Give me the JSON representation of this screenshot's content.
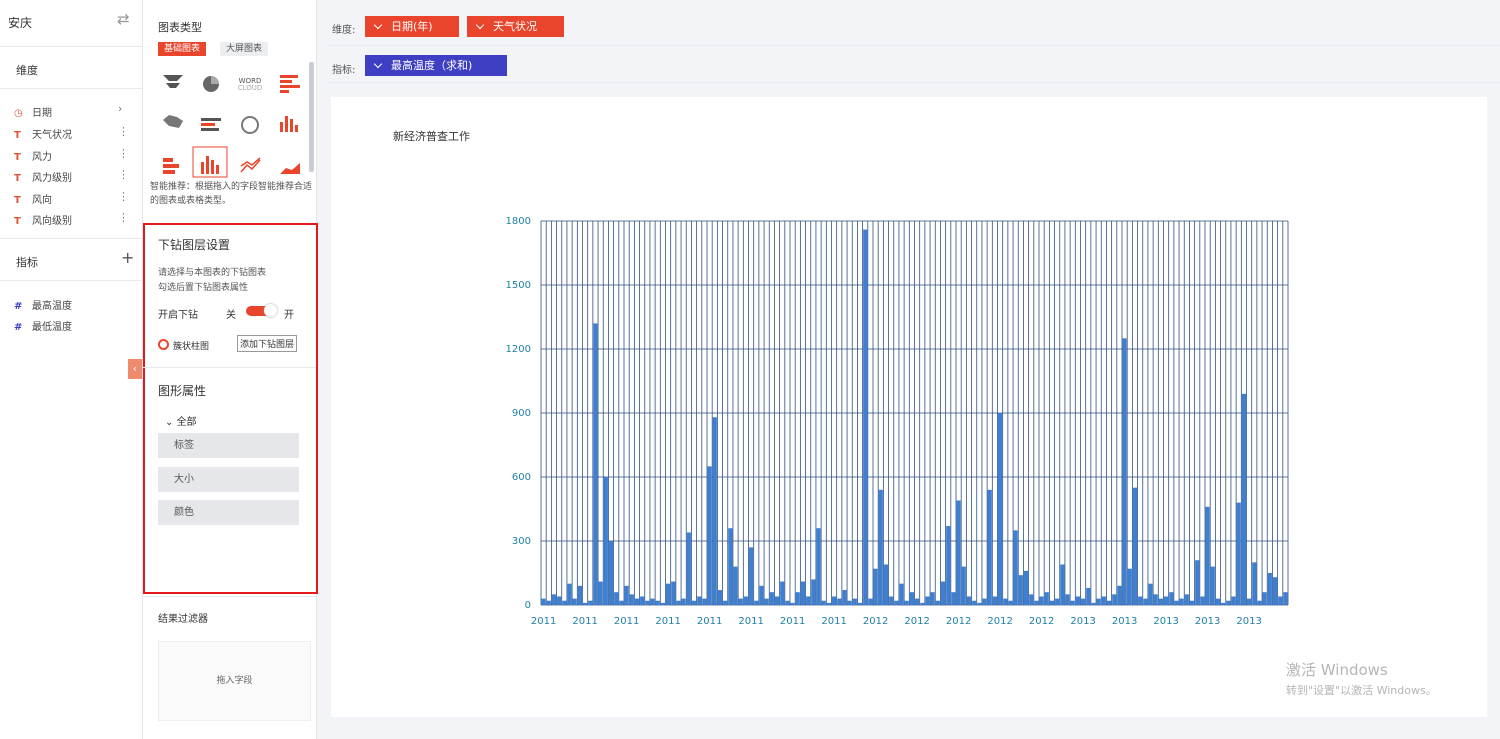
{
  "header": {
    "city": "安庆"
  },
  "dimensions": {
    "title": "维度",
    "fields": [
      "日期",
      "天气状况",
      "风力",
      "风力级别",
      "风向",
      "风向级别"
    ]
  },
  "measures": {
    "title": "指标",
    "fields": [
      "最高温度",
      "最低温度"
    ]
  },
  "chart_types": {
    "title": "图表类型",
    "tabs": [
      "基础图表",
      "大屏图表"
    ],
    "word_cloud_icon": [
      "WORD",
      "CLOUD"
    ],
    "hint": "智能推荐：根据拖入的字段智能推荐合适的图表或表格类型。"
  },
  "drill": {
    "title": "下钻图层设置",
    "desc": [
      "请选择与本图表的下钻图表",
      "勾选后置下钻图表属性"
    ],
    "toggle_label": "开启下钻",
    "off": "关",
    "on": "开",
    "layer": "簇状柱图",
    "add_button": "添加下钻图层"
  },
  "shape": {
    "title": "图形属性",
    "group": "全部",
    "items": [
      "标签",
      "大小",
      "颜色"
    ]
  },
  "filter": {
    "title": "结果过滤器",
    "placeholder": "拖入字段"
  },
  "toolbar": {
    "dim_label": "维度:",
    "dims": [
      "日期(年)",
      "天气状况"
    ],
    "measure_label": "指标:",
    "measures": [
      "最高温度（求和)"
    ]
  },
  "watermark": {
    "title": "激活 Windows",
    "sub": "转到\"设置\"以激活 Windows。"
  },
  "chart_data": {
    "type": "bar",
    "title": "新经济普查工作",
    "color": "#3d7fd3",
    "grid": true,
    "categories": [
      "2011",
      null,
      null,
      null,
      null,
      null,
      null,
      null,
      "2011",
      null,
      null,
      null,
      null,
      null,
      null,
      null,
      "2011",
      null,
      null,
      null,
      null,
      null,
      null,
      null,
      "2011",
      null,
      null,
      null,
      null,
      null,
      null,
      null,
      "2011",
      null,
      null,
      null,
      null,
      null,
      null,
      null,
      "2011",
      null,
      null,
      null,
      null,
      null,
      null,
      null,
      "2011",
      null,
      null,
      null,
      null,
      null,
      null,
      null,
      "2011",
      null,
      null,
      null,
      null,
      null,
      null,
      null,
      "2012",
      null,
      null,
      null,
      null,
      null,
      null,
      null,
      "2012",
      null,
      null,
      null,
      null,
      null,
      null,
      null,
      "2012",
      null,
      null,
      null,
      null,
      null,
      null,
      null,
      "2012",
      null,
      null,
      null,
      null,
      null,
      null,
      null,
      "2012",
      null,
      null,
      null,
      null,
      null,
      null,
      null,
      "2013",
      null,
      null,
      null,
      null,
      null,
      null,
      null,
      "2013",
      null,
      null,
      null,
      null,
      null,
      null,
      null,
      "2013",
      null,
      null,
      null,
      null,
      null,
      null,
      null,
      "2013",
      null,
      null,
      null,
      null,
      null,
      null,
      null,
      "2013",
      null,
      null,
      null,
      null,
      null,
      null,
      null
    ],
    "values": [
      30,
      20,
      50,
      40,
      20,
      100,
      30,
      90,
      10,
      20,
      1320,
      110,
      600,
      300,
      60,
      20,
      90,
      50,
      30,
      40,
      20,
      30,
      20,
      10,
      100,
      110,
      20,
      30,
      340,
      20,
      40,
      30,
      650,
      880,
      70,
      20,
      360,
      180,
      30,
      40,
      270,
      20,
      90,
      30,
      60,
      40,
      110,
      20,
      10,
      60,
      110,
      40,
      120,
      360,
      20,
      10,
      40,
      30,
      70,
      20,
      30,
      10,
      1760,
      30,
      170,
      540,
      190,
      40,
      20,
      100,
      20,
      60,
      30,
      10,
      40,
      60,
      20,
      110,
      370,
      60,
      490,
      180,
      40,
      20,
      10,
      30,
      540,
      40,
      900,
      30,
      20,
      350,
      140,
      160,
      50,
      20,
      40,
      60,
      20,
      30,
      190,
      50,
      20,
      40,
      30,
      80,
      10,
      30,
      40,
      20,
      50,
      90,
      1250,
      170,
      550,
      40,
      30,
      100,
      50,
      30,
      40,
      60,
      20,
      30,
      50,
      20,
      210,
      40,
      460,
      180,
      30,
      10,
      20,
      40,
      480,
      990,
      30,
      200,
      20,
      60,
      150,
      130,
      40,
      60
    ],
    "ylim": [
      0,
      1800
    ],
    "yticks": [
      0,
      300,
      600,
      900,
      1200,
      1500,
      1800
    ]
  }
}
